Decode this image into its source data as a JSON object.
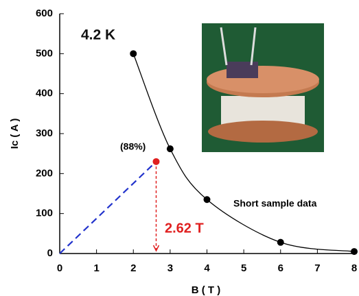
{
  "chart_data": {
    "type": "line",
    "annotation": "4.2 K",
    "xlabel": "B ( T )",
    "ylabel": "Ic ( A )",
    "x": [
      2,
      3,
      4,
      6,
      8
    ],
    "series": [
      {
        "name": "Short sample data",
        "color": "#000000",
        "values": [
          500,
          262,
          135,
          28,
          5
        ]
      }
    ],
    "operating_point": {
      "x": 2.62,
      "y": 230,
      "color": "#e02020",
      "label": "(88%)",
      "field_label": "2.62 T"
    },
    "load_line_color": "#2233cc",
    "xlim": [
      0,
      8
    ],
    "ylim": [
      0,
      600
    ],
    "xticks": [
      0,
      1,
      2,
      3,
      4,
      5,
      6,
      7,
      8
    ],
    "yticks": [
      0,
      100,
      200,
      300,
      400,
      500,
      600
    ]
  }
}
